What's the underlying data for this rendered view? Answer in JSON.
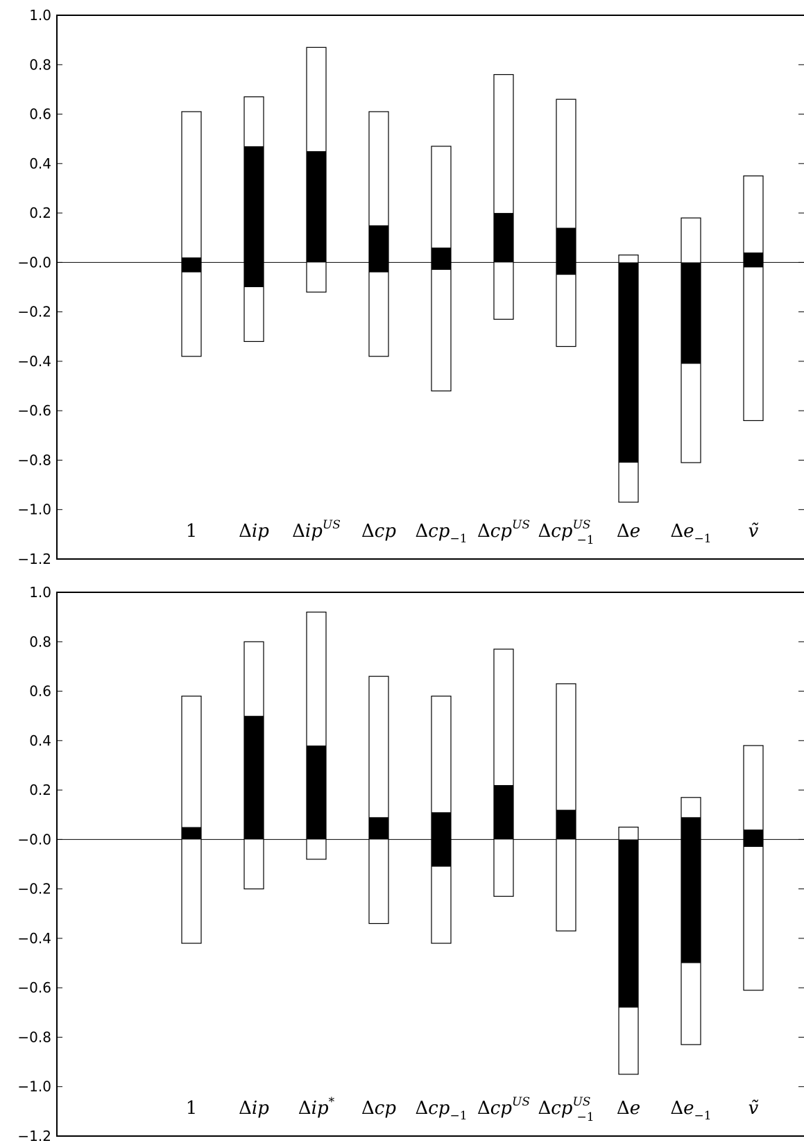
{
  "chart_data": [
    {
      "type": "bar",
      "title": "",
      "xlabel": "",
      "ylabel": "",
      "ylim": [
        -1.2,
        1.0
      ],
      "yticks": [
        "1.0",
        "0.8",
        "0.6",
        "0.4",
        "0.2",
        "-0.0",
        "-0.2",
        "-0.4",
        "-0.6",
        "-0.8",
        "-1.0",
        "-1.2"
      ],
      "categories": [
        {
          "base": "1"
        },
        {
          "base": "Δip"
        },
        {
          "base": "Δip",
          "sup": "US"
        },
        {
          "base": "Δcp"
        },
        {
          "base": "Δcp",
          "sub": "−1"
        },
        {
          "base": "Δcp",
          "sup": "US"
        },
        {
          "base": "Δcp",
          "sup": "US",
          "sub": "−1"
        },
        {
          "base": "Δe"
        },
        {
          "base": "Δe",
          "sub": "−1"
        },
        {
          "base": "ṽ"
        }
      ],
      "series": [
        {
          "values": [
            {
              "outer_low": -0.38,
              "outer_high": 0.61,
              "inner_low": -0.04,
              "inner_high": 0.02
            },
            {
              "outer_low": -0.32,
              "outer_high": 0.67,
              "inner_low": -0.1,
              "inner_high": 0.47
            },
            {
              "outer_low": -0.12,
              "outer_high": 0.87,
              "inner_low": 0.0,
              "inner_high": 0.45
            },
            {
              "outer_low": -0.38,
              "outer_high": 0.61,
              "inner_low": -0.04,
              "inner_high": 0.15
            },
            {
              "outer_low": -0.52,
              "outer_high": 0.47,
              "inner_low": -0.03,
              "inner_high": 0.06
            },
            {
              "outer_low": -0.23,
              "outer_high": 0.76,
              "inner_low": 0.0,
              "inner_high": 0.2
            },
            {
              "outer_low": -0.34,
              "outer_high": 0.66,
              "inner_low": -0.05,
              "inner_high": 0.14
            },
            {
              "outer_low": -0.97,
              "outer_high": 0.03,
              "inner_low": -0.81,
              "inner_high": 0.0
            },
            {
              "outer_low": -0.81,
              "outer_high": 0.18,
              "inner_low": -0.41,
              "inner_high": 0.0
            },
            {
              "outer_low": -0.64,
              "outer_high": 0.35,
              "inner_low": -0.02,
              "inner_high": 0.04
            }
          ]
        }
      ]
    },
    {
      "type": "bar",
      "title": "",
      "xlabel": "",
      "ylabel": "",
      "ylim": [
        -1.2,
        1.0
      ],
      "yticks": [
        "1.0",
        "0.8",
        "0.6",
        "0.4",
        "0.2",
        "-0.0",
        "-0.2",
        "-0.4",
        "-0.6",
        "-0.8",
        "-1.0",
        "-1.2"
      ],
      "categories": [
        {
          "base": "1"
        },
        {
          "base": "Δip"
        },
        {
          "base": "Δip",
          "sup": "*"
        },
        {
          "base": "Δcp"
        },
        {
          "base": "Δcp",
          "sub": "−1"
        },
        {
          "base": "Δcp",
          "sup": "US"
        },
        {
          "base": "Δcp",
          "sup": "US",
          "sub": "−1"
        },
        {
          "base": "Δe"
        },
        {
          "base": "Δe",
          "sub": "−1"
        },
        {
          "base": "ṽ"
        }
      ],
      "series": [
        {
          "values": [
            {
              "outer_low": -0.42,
              "outer_high": 0.58,
              "inner_low": 0.0,
              "inner_high": 0.05
            },
            {
              "outer_low": -0.2,
              "outer_high": 0.8,
              "inner_low": 0.0,
              "inner_high": 0.5
            },
            {
              "outer_low": -0.08,
              "outer_high": 0.92,
              "inner_low": 0.0,
              "inner_high": 0.38
            },
            {
              "outer_low": -0.34,
              "outer_high": 0.66,
              "inner_low": 0.0,
              "inner_high": 0.09
            },
            {
              "outer_low": -0.42,
              "outer_high": 0.58,
              "inner_low": -0.11,
              "inner_high": 0.11
            },
            {
              "outer_low": -0.23,
              "outer_high": 0.77,
              "inner_low": 0.0,
              "inner_high": 0.22
            },
            {
              "outer_low": -0.37,
              "outer_high": 0.63,
              "inner_low": 0.0,
              "inner_high": 0.12
            },
            {
              "outer_low": -0.95,
              "outer_high": 0.05,
              "inner_low": -0.68,
              "inner_high": 0.0
            },
            {
              "outer_low": -0.83,
              "outer_high": 0.17,
              "inner_low": -0.5,
              "inner_high": 0.09
            },
            {
              "outer_low": -0.61,
              "outer_high": 0.38,
              "inner_low": -0.03,
              "inner_high": 0.04
            }
          ]
        }
      ]
    }
  ]
}
